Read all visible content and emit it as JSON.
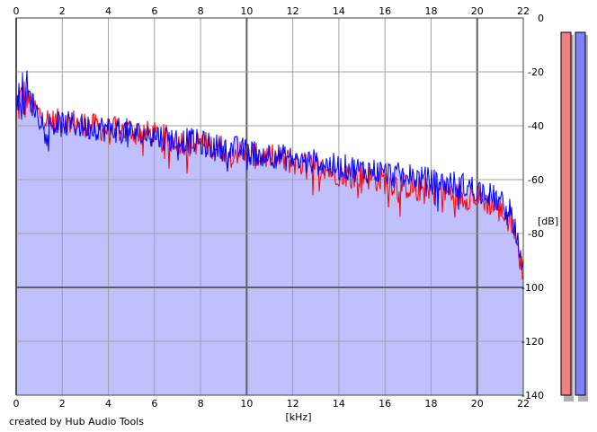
{
  "chart_data": {
    "type": "area",
    "xlabel": "[kHz]",
    "ylabel": "[dB]",
    "xlim": [
      0,
      22
    ],
    "ylim": [
      -140,
      0
    ],
    "xticks": [
      0,
      2,
      4,
      6,
      8,
      10,
      12,
      14,
      16,
      18,
      20,
      22
    ],
    "yticks": [
      0,
      -20,
      -40,
      -60,
      -80,
      -100,
      -120,
      -140
    ],
    "grid": true,
    "x": [
      0,
      0.5,
      1,
      1.5,
      2,
      2.5,
      3,
      3.5,
      4,
      4.5,
      5,
      5.5,
      6,
      6.5,
      7,
      7.5,
      8,
      8.5,
      9,
      9.5,
      10,
      10.5,
      11,
      11.5,
      12,
      12.5,
      13,
      13.5,
      14,
      14.5,
      15,
      15.5,
      16,
      16.5,
      17,
      17.5,
      18,
      18.5,
      19,
      19.5,
      20,
      20.5,
      21,
      21.5,
      21.8,
      22
    ],
    "series": [
      {
        "color": "#ff0000",
        "values": [
          -35,
          -32,
          -37,
          -40,
          -40,
          -40,
          -41,
          -42,
          -43,
          -43,
          -43,
          -44,
          -45,
          -46,
          -47,
          -48,
          -48,
          -49,
          -50,
          -51,
          -52,
          -53,
          -53,
          -54,
          -55,
          -56,
          -57,
          -58,
          -59,
          -60,
          -60,
          -61,
          -62,
          -63,
          -64,
          -65,
          -65,
          -66,
          -67,
          -68,
          -68,
          -70,
          -73,
          -76,
          -88,
          -98
        ]
      },
      {
        "color": "#0000ff",
        "values": [
          -33,
          -30,
          -38,
          -41,
          -41,
          -41,
          -42,
          -42,
          -43,
          -43,
          -44,
          -45,
          -45,
          -46,
          -47,
          -47,
          -48,
          -49,
          -50,
          -50,
          -51,
          -52,
          -52,
          -53,
          -54,
          -55,
          -55,
          -56,
          -57,
          -57,
          -58,
          -58,
          -59,
          -60,
          -60,
          -61,
          -62,
          -63,
          -63,
          -64,
          -65,
          -67,
          -70,
          -74,
          -86,
          -95
        ]
      }
    ],
    "fill_color": "#c0c0ff",
    "meters": [
      {
        "color": "#f08080"
      },
      {
        "color": "#8080ff"
      }
    ],
    "credit": "created by Hub Audio Tools"
  }
}
